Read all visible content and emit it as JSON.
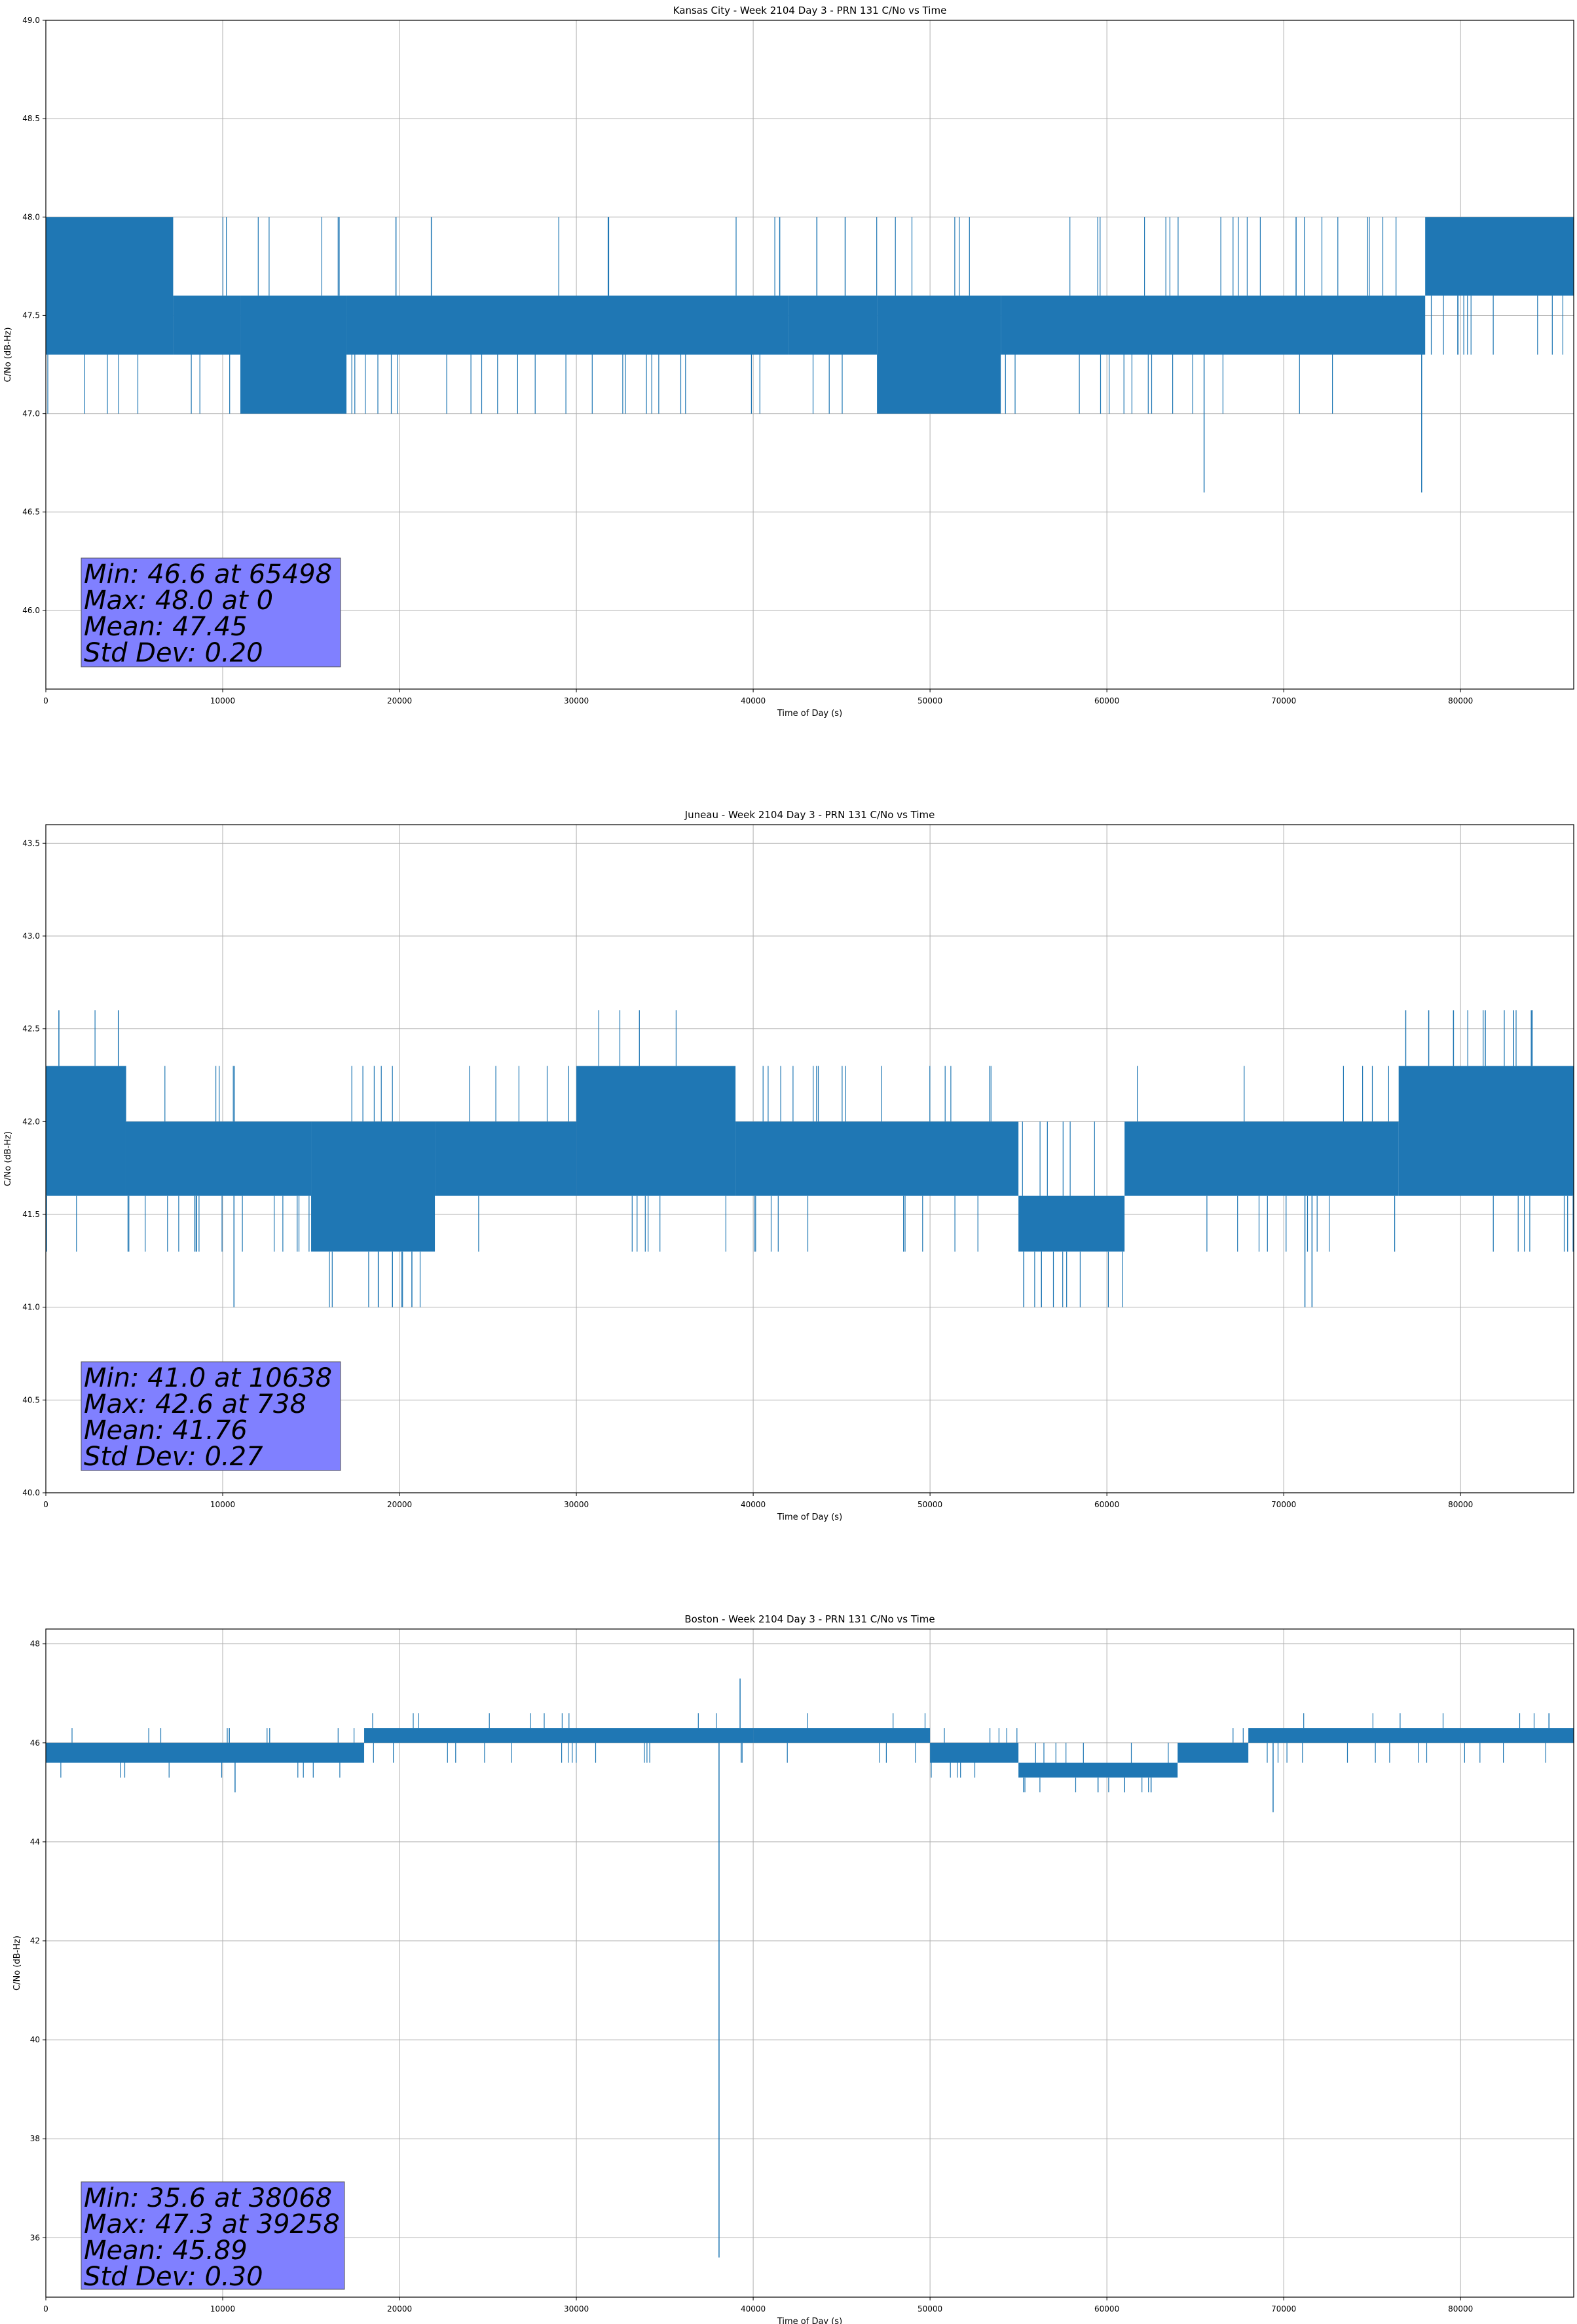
{
  "chart_data": [
    {
      "type": "line",
      "title": "Kansas City - Week 2104 Day 3 - PRN 131 C/No vs Time",
      "xlabel": "Time of Day (s)",
      "ylabel": "C/No (dB-Hz)",
      "xlim": [
        0,
        86400
      ],
      "ylim": [
        45.6,
        49.0
      ],
      "xticks": [
        0,
        10000,
        20000,
        30000,
        40000,
        50000,
        60000,
        70000,
        80000
      ],
      "yticks": [
        "46.0",
        "46.5",
        "47.0",
        "47.5",
        "48.0",
        "48.5",
        "49.0"
      ],
      "grid": true,
      "color": "#1f77b4",
      "stats_box": {
        "lines": [
          "Min: 46.6 at 65498",
          "Max: 48.0 at 0",
          "Mean: 47.45",
          "Std Dev: 0.20"
        ],
        "facecolor": "#8080ff"
      },
      "levels": [
        47.0,
        47.3,
        47.6,
        48.0
      ],
      "segments": [
        {
          "x": [
            0,
            7200
          ],
          "lo": 47.3,
          "hi": 48.0
        },
        {
          "x": [
            7200,
            11000
          ],
          "lo": 47.3,
          "hi": 47.6
        },
        {
          "x": [
            11000,
            17000
          ],
          "lo": 47.0,
          "hi": 47.6
        },
        {
          "x": [
            17000,
            42000
          ],
          "lo": 47.3,
          "hi": 47.6
        },
        {
          "x": [
            42000,
            47000
          ],
          "lo": 47.3,
          "hi": 47.6
        },
        {
          "x": [
            47000,
            54000
          ],
          "lo": 47.0,
          "hi": 47.6
        },
        {
          "x": [
            54000,
            78000
          ],
          "lo": 47.3,
          "hi": 47.6
        },
        {
          "x": [
            78000,
            86400
          ],
          "lo": 47.6,
          "hi": 48.0
        }
      ],
      "spikes": [
        {
          "x": 65498,
          "y": 46.6
        },
        {
          "x": 77800,
          "y": 46.6
        },
        {
          "x": 21800,
          "y": 48.0
        },
        {
          "x": 31800,
          "y": 48.0
        },
        {
          "x": 41500,
          "y": 48.0
        },
        {
          "x": 43600,
          "y": 48.0
        },
        {
          "x": 45200,
          "y": 48.0
        },
        {
          "x": 70700,
          "y": 48.0
        },
        {
          "x": 19800,
          "y": 48.0
        }
      ]
    },
    {
      "type": "line",
      "title": "Juneau - Week 2104 Day 3 - PRN 131 C/No vs Time",
      "xlabel": "Time of Day (s)",
      "ylabel": "C/No (dB-Hz)",
      "xlim": [
        0,
        86400
      ],
      "ylim": [
        40.0,
        43.6
      ],
      "xticks": [
        0,
        10000,
        20000,
        30000,
        40000,
        50000,
        60000,
        70000,
        80000
      ],
      "yticks": [
        "40.0",
        "40.5",
        "41.0",
        "41.5",
        "42.0",
        "42.5",
        "43.0",
        "43.5"
      ],
      "grid": true,
      "color": "#1f77b4",
      "stats_box": {
        "lines": [
          "Min: 41.0 at 10638",
          "Max: 42.6 at 738",
          "Mean: 41.76",
          "Std Dev: 0.27"
        ],
        "facecolor": "#8080ff"
      },
      "levels": [
        41.0,
        41.3,
        41.6,
        42.0,
        42.3,
        42.6
      ],
      "segments": [
        {
          "x": [
            0,
            4500
          ],
          "lo": 41.6,
          "hi": 42.3
        },
        {
          "x": [
            4500,
            15000
          ],
          "lo": 41.6,
          "hi": 42.0
        },
        {
          "x": [
            15000,
            22000
          ],
          "lo": 41.3,
          "hi": 42.0
        },
        {
          "x": [
            22000,
            30000
          ],
          "lo": 41.6,
          "hi": 42.0
        },
        {
          "x": [
            30000,
            39000
          ],
          "lo": 41.6,
          "hi": 42.3
        },
        {
          "x": [
            39000,
            55000
          ],
          "lo": 41.6,
          "hi": 42.0
        },
        {
          "x": [
            55000,
            61000
          ],
          "lo": 41.3,
          "hi": 41.6
        },
        {
          "x": [
            61000,
            76500
          ],
          "lo": 41.6,
          "hi": 42.0
        },
        {
          "x": [
            76500,
            86400
          ],
          "lo": 41.6,
          "hi": 42.3
        }
      ],
      "spikes": [
        {
          "x": 738,
          "y": 42.6
        },
        {
          "x": 10638,
          "y": 41.0
        },
        {
          "x": 4100,
          "y": 42.6
        },
        {
          "x": 18800,
          "y": 41.0
        },
        {
          "x": 19600,
          "y": 41.0
        },
        {
          "x": 20700,
          "y": 41.0
        },
        {
          "x": 55300,
          "y": 41.0
        },
        {
          "x": 56300,
          "y": 41.0
        },
        {
          "x": 71200,
          "y": 41.0
        },
        {
          "x": 71600,
          "y": 41.0
        },
        {
          "x": 76900,
          "y": 42.6
        },
        {
          "x": 78200,
          "y": 42.6
        },
        {
          "x": 79600,
          "y": 42.6
        },
        {
          "x": 81400,
          "y": 42.6
        },
        {
          "x": 83000,
          "y": 42.6
        },
        {
          "x": 84000,
          "y": 42.6
        }
      ]
    },
    {
      "type": "line",
      "title": "Boston - Week 2104 Day 3 - PRN 131 C/No vs Time",
      "xlabel": "Time of Day (s)",
      "ylabel": "C/No (dB-Hz)",
      "xlim": [
        0,
        86400
      ],
      "ylim": [
        34.8,
        48.3
      ],
      "xticks": [
        0,
        10000,
        20000,
        30000,
        40000,
        50000,
        60000,
        70000,
        80000
      ],
      "yticks": [
        "36",
        "38",
        "40",
        "42",
        "44",
        "46",
        "48"
      ],
      "grid": true,
      "color": "#1f77b4",
      "stats_box": {
        "lines": [
          "Min: 35.6 at 38068",
          "Max: 47.3 at 39258",
          "Mean: 45.89",
          "Std Dev: 0.30"
        ],
        "facecolor": "#8080ff"
      },
      "levels": [
        45.0,
        45.3,
        45.6,
        46.0,
        46.3,
        46.6,
        47.3
      ],
      "segments": [
        {
          "x": [
            0,
            18000
          ],
          "lo": 45.6,
          "hi": 46.0
        },
        {
          "x": [
            18000,
            40000
          ],
          "lo": 46.0,
          "hi": 46.3
        },
        {
          "x": [
            40000,
            50000
          ],
          "lo": 46.0,
          "hi": 46.3
        },
        {
          "x": [
            50000,
            55000
          ],
          "lo": 45.6,
          "hi": 46.0
        },
        {
          "x": [
            55000,
            64000
          ],
          "lo": 45.3,
          "hi": 45.6
        },
        {
          "x": [
            64000,
            68000
          ],
          "lo": 45.6,
          "hi": 46.0
        },
        {
          "x": [
            68000,
            86400
          ],
          "lo": 46.0,
          "hi": 46.3
        }
      ],
      "spikes": [
        {
          "x": 38068,
          "y": 35.6
        },
        {
          "x": 39258,
          "y": 47.3
        },
        {
          "x": 10700,
          "y": 45.0
        },
        {
          "x": 69400,
          "y": 44.6
        },
        {
          "x": 59500,
          "y": 45.0
        },
        {
          "x": 61000,
          "y": 45.0
        },
        {
          "x": 62500,
          "y": 45.0
        },
        {
          "x": 85000,
          "y": 46.6
        }
      ]
    }
  ]
}
